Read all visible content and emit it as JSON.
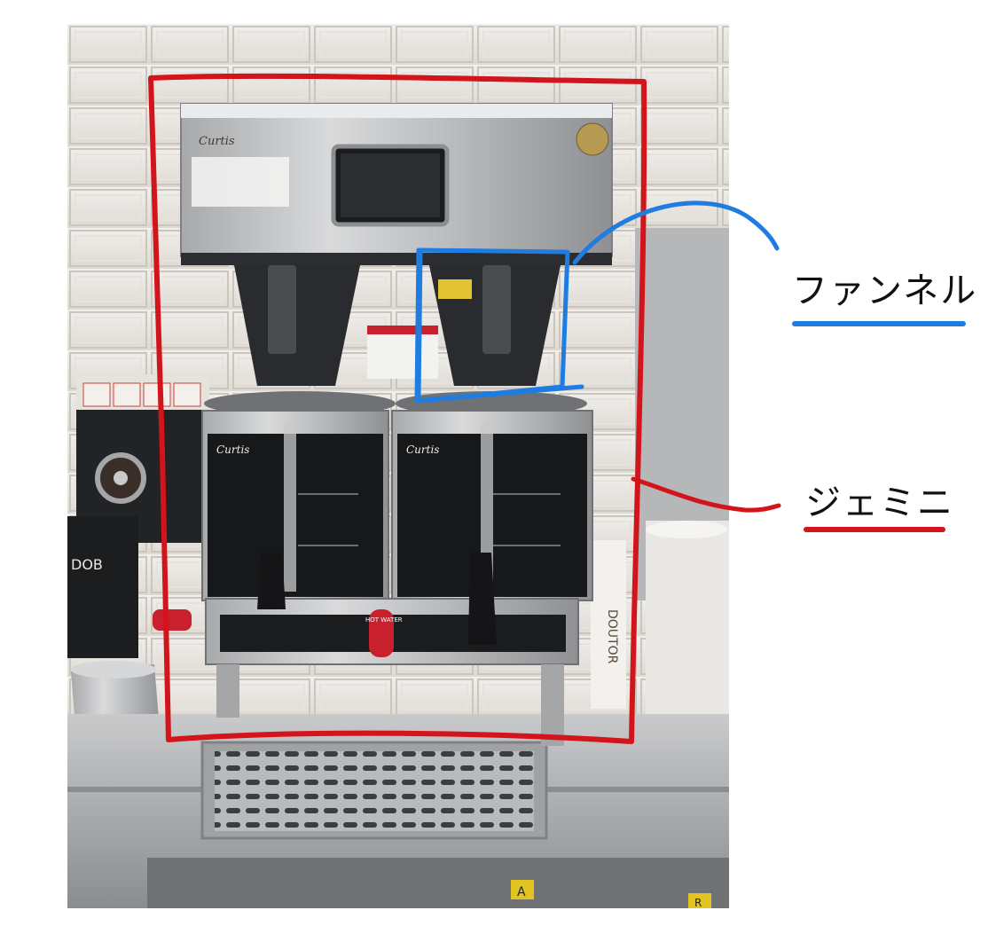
{
  "annotations": {
    "funnel": {
      "label": "ファンネル",
      "color": "#1f7ce0"
    },
    "gemini": {
      "label": "ジェミニ",
      "color": "#d3141a"
    }
  },
  "photo": {
    "brand": "Curtis",
    "store_brand": "DOUTOR",
    "hot_water_label": "HOT WATER",
    "floor_marks": [
      "A",
      "R"
    ]
  }
}
